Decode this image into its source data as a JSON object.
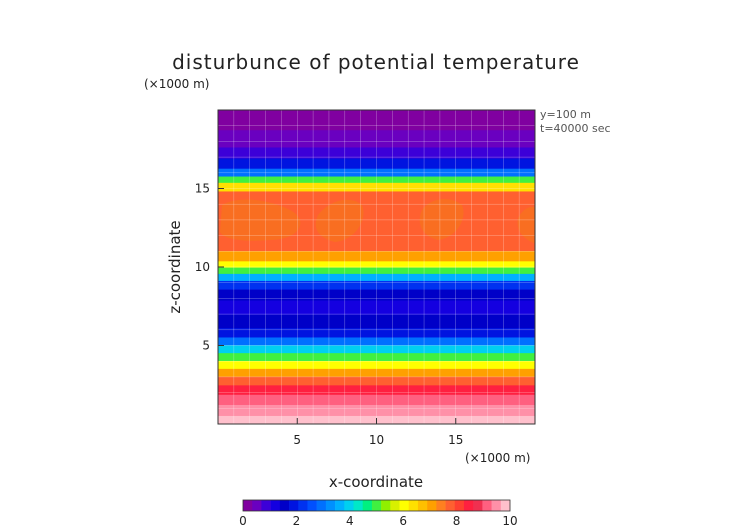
{
  "chart_data": {
    "type": "heatmap",
    "title": "disturbunce of potential temperature",
    "xlabel": "x-coordinate",
    "ylabel": "z-coordinate",
    "x_unit": "(×1000 m)",
    "z_unit": "(×1000 m)",
    "annotations": [
      "y=100 m",
      "t=40000 sec"
    ],
    "xlim": [
      0,
      20
    ],
    "ylim": [
      0,
      20
    ],
    "x_ticks": [
      5,
      10,
      15
    ],
    "y_ticks": [
      5,
      10,
      15
    ],
    "colorbar": {
      "min": 0,
      "max": 10,
      "ticks": [
        0,
        2,
        4,
        6,
        8,
        10
      ],
      "colors": [
        "#8000a0",
        "#6a00c0",
        "#3c00d8",
        "#1400e0",
        "#0000c8",
        "#0014e0",
        "#0032f0",
        "#0050ff",
        "#0070ff",
        "#0090ff",
        "#00b0ff",
        "#00d0f0",
        "#00e8c8",
        "#00f080",
        "#40f040",
        "#90f000",
        "#d8f000",
        "#ffff00",
        "#ffe000",
        "#ffc000",
        "#ffa000",
        "#ff8020",
        "#ff6030",
        "#ff4030",
        "#ff2040",
        "#f03050",
        "#ff6080",
        "#ff90a8",
        "#ffc0cc"
      ]
    },
    "z_profile": [
      {
        "z": 0.2,
        "value": 9.8
      },
      {
        "z": 0.9,
        "value": 9.6
      },
      {
        "z": 1.6,
        "value": 9.0
      },
      {
        "z": 2.2,
        "value": 8.5
      },
      {
        "z": 2.8,
        "value": 7.8
      },
      {
        "z": 3.3,
        "value": 7.0
      },
      {
        "z": 3.8,
        "value": 6.0
      },
      {
        "z": 4.3,
        "value": 5.0
      },
      {
        "z": 4.8,
        "value": 3.8
      },
      {
        "z": 5.3,
        "value": 2.8
      },
      {
        "z": 5.8,
        "value": 2.0
      },
      {
        "z": 6.5,
        "value": 1.5
      },
      {
        "z": 7.5,
        "value": 1.3
      },
      {
        "z": 8.3,
        "value": 1.6
      },
      {
        "z": 8.9,
        "value": 2.4
      },
      {
        "z": 9.4,
        "value": 3.6
      },
      {
        "z": 9.8,
        "value": 5.0
      },
      {
        "z": 10.2,
        "value": 6.2
      },
      {
        "z": 10.6,
        "value": 7.0
      },
      {
        "z": 11.5,
        "value": 7.6
      },
      {
        "z": 13.0,
        "value": 7.8
      },
      {
        "z": 14.5,
        "value": 7.7
      },
      {
        "z": 15.2,
        "value": 6.5
      },
      {
        "z": 15.6,
        "value": 5.0
      },
      {
        "z": 16.0,
        "value": 3.0
      },
      {
        "z": 16.6,
        "value": 1.8
      },
      {
        "z": 17.3,
        "value": 1.0
      },
      {
        "z": 18.0,
        "value": 0.4
      },
      {
        "z": 19.5,
        "value": 0.2
      }
    ]
  }
}
